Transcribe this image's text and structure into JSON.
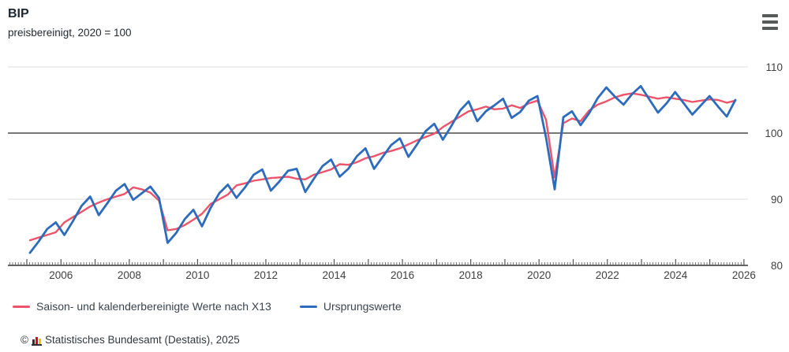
{
  "header": {
    "title": "BIP",
    "subtitle": "preisbereinigt, 2020 = 100"
  },
  "menu": {
    "label": "chart-export-menu"
  },
  "chart_data": {
    "type": "line",
    "title": "BIP",
    "subtitle": "preisbereinigt, 2020 = 100",
    "x_start_year": 2005,
    "x_end_year": 2026,
    "points_per_year": 4,
    "first_point_period": "2005-Q1",
    "last_point_period": "2025-Q3",
    "x_tick_labels": [
      "2006",
      "2008",
      "2010",
      "2012",
      "2014",
      "2016",
      "2018",
      "2020",
      "2022",
      "2024",
      "2026"
    ],
    "ylim": [
      80,
      111
    ],
    "y_ticks": [
      80,
      90,
      100,
      110
    ],
    "reference_line": 100,
    "grid": true,
    "legend_position": "bottom",
    "axis_color": "#404040",
    "grid_color": "#dcdcdc",
    "reference_line_color": "#4a4a4a",
    "series": [
      {
        "name": "Saison- und kalenderbereinigte Werte nach X13",
        "color": "#ee5469",
        "width": 2.4,
        "values": [
          83.8,
          84.2,
          84.6,
          85.0,
          86.5,
          87.3,
          88.1,
          88.9,
          89.5,
          90.0,
          90.4,
          90.8,
          91.8,
          91.5,
          91.0,
          89.8,
          85.3,
          85.5,
          86.1,
          86.9,
          87.8,
          89.3,
          90.0,
          90.7,
          92.1,
          92.4,
          92.8,
          93.0,
          93.2,
          93.3,
          93.4,
          93.1,
          93.0,
          93.7,
          94.1,
          94.5,
          95.3,
          95.2,
          95.6,
          96.2,
          96.5,
          97.0,
          97.3,
          97.7,
          98.3,
          98.9,
          99.4,
          99.9,
          100.9,
          101.7,
          102.5,
          103.3,
          103.6,
          104.0,
          103.6,
          103.7,
          104.2,
          103.8,
          104.5,
          104.9,
          102.0,
          93.3,
          101.5,
          102.2,
          101.8,
          103.4,
          104.3,
          104.8,
          105.4,
          105.8,
          106.0,
          105.8,
          105.5,
          105.2,
          105.4,
          105.2,
          105.0,
          104.7,
          104.9,
          105.1,
          105.0,
          104.6,
          104.9
        ]
      },
      {
        "name": "Ursprungswerte",
        "color": "#2d6bbd",
        "width": 2.8,
        "values": [
          81.9,
          83.6,
          85.5,
          86.5,
          84.6,
          86.7,
          89.0,
          90.4,
          87.6,
          89.4,
          91.3,
          92.3,
          89.9,
          90.9,
          91.9,
          90.2,
          83.4,
          84.9,
          87.0,
          88.4,
          85.9,
          88.7,
          90.9,
          92.2,
          90.2,
          91.8,
          93.7,
          94.5,
          91.3,
          92.7,
          94.3,
          94.6,
          91.1,
          93.1,
          95.0,
          96.0,
          93.4,
          94.6,
          96.5,
          97.7,
          94.6,
          96.4,
          98.2,
          99.2,
          96.4,
          98.3,
          100.3,
          101.4,
          99.0,
          101.1,
          103.4,
          104.8,
          101.8,
          103.3,
          104.2,
          105.2,
          102.3,
          103.2,
          104.9,
          105.6,
          99.3,
          91.5,
          102.4,
          103.3,
          101.2,
          103.0,
          105.3,
          106.9,
          105.5,
          104.3,
          105.9,
          107.1,
          105.1,
          103.1,
          104.5,
          106.2,
          104.5,
          102.8,
          104.2,
          105.6,
          104.0,
          102.5,
          105.0
        ]
      }
    ]
  },
  "legend": {
    "items": [
      {
        "label": "Saison- und kalenderbereinigte Werte nach X13",
        "color": "#ee5469"
      },
      {
        "label": "Ursprungswerte",
        "color": "#2d6bbd"
      }
    ]
  },
  "footer": {
    "copyright_symbol": "©",
    "source": "Statistisches Bundesamt (Destatis), 2025",
    "logo_bar_colors": [
      "#32302e",
      "#e2001a",
      "#f5c400"
    ],
    "logo_bar_heights": [
      6,
      9,
      7
    ]
  }
}
